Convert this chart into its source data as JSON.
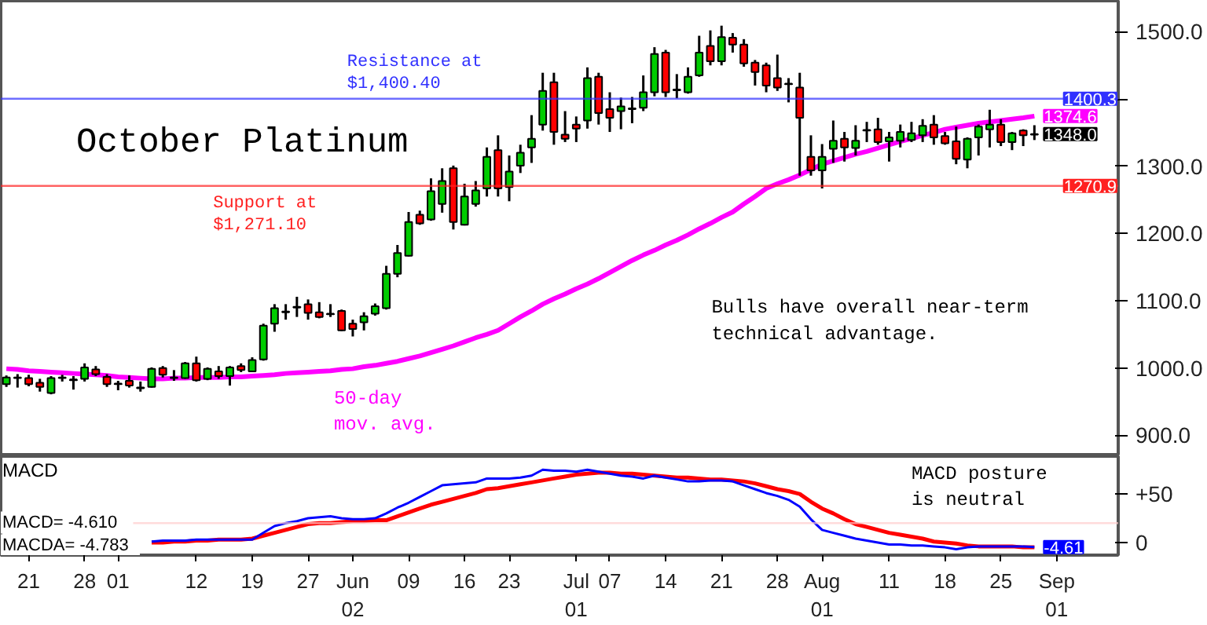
{
  "chart_data": [
    {
      "type": "candlestick",
      "title": "October Platinum",
      "ylim": [
        869,
        1546
      ],
      "tick_labels": "y",
      "categories": [
        null,
        null,
        null,
        null,
        null,
        null,
        null,
        null,
        null,
        null,
        null,
        null,
        null,
        null,
        null,
        null,
        null,
        null,
        null,
        null,
        null,
        null,
        null,
        null,
        null,
        null,
        null,
        null,
        null,
        null,
        null,
        null,
        null,
        null,
        null,
        null,
        null,
        null,
        null,
        null,
        null,
        null,
        null,
        null,
        null,
        null,
        null,
        null,
        null,
        null,
        null,
        null,
        null,
        null,
        null,
        null,
        null,
        null,
        null,
        null,
        null,
        null,
        null,
        null,
        null,
        null,
        null,
        null,
        null,
        null,
        null,
        null,
        null,
        null,
        null,
        null,
        null,
        null,
        null,
        null,
        null,
        null,
        null,
        null,
        null,
        null,
        null,
        null,
        null,
        null,
        null,
        null,
        null,
        null,
        null,
        null,
        null,
        null,
        null,
        null
      ],
      "yticks": [
        {
          "value": 900,
          "label": "900.0"
        },
        {
          "value": 1000,
          "label": "1000.0"
        },
        {
          "value": 1100,
          "label": "1100.0"
        },
        {
          "value": 1200,
          "label": "1200.0"
        },
        {
          "value": 1300,
          "label": "1300.0"
        },
        {
          "value": 1400,
          "label": null
        },
        {
          "value": 1500,
          "label": "1500.0"
        }
      ],
      "series": [
        {
          "type": "candlestick",
          "color": "#000000",
          "ohlc": [
            [
              976,
              989,
              972,
              986
            ],
            [
              985,
              991,
              971,
              986
            ],
            [
              985,
              990,
              973,
              976
            ],
            [
              978,
              984,
              965,
              972
            ],
            [
              963,
              988,
              961,
              985
            ],
            [
              985,
              990,
              980,
              986
            ],
            [
              983,
              988,
              968,
              982
            ],
            [
              984,
              1007,
              980,
              1001
            ],
            [
              998,
              1003,
              988,
              991
            ],
            [
              987,
              991,
              972,
              976
            ],
            [
              977,
              981,
              967,
              976
            ],
            [
              981,
              989,
              971,
              974
            ],
            [
              971,
              980,
              965,
              970
            ],
            [
              972,
              1001,
              971,
              999
            ],
            [
              1000,
              1003,
              986,
              990
            ],
            [
              985,
              997,
              981,
              986
            ],
            [
              985,
              1009,
              984,
              1007
            ],
            [
              1007,
              1017,
              980,
              982
            ],
            [
              984,
              1001,
              982,
              999
            ],
            [
              995,
              1003,
              984,
              988
            ],
            [
              988,
              1003,
              974,
              1001
            ],
            [
              1003,
              1007,
              994,
              997
            ],
            [
              995,
              1016,
              994,
              1012
            ],
            [
              1013,
              1066,
              1011,
              1063
            ],
            [
              1066,
              1095,
              1054,
              1089
            ],
            [
              1083,
              1095,
              1072,
              1084
            ],
            [
              1090,
              1106,
              1076,
              1091
            ],
            [
              1095,
              1102,
              1072,
              1082
            ],
            [
              1083,
              1098,
              1074,
              1076
            ],
            [
              1080,
              1095,
              1076,
              1081
            ],
            [
              1085,
              1087,
              1055,
              1056
            ],
            [
              1066,
              1072,
              1047,
              1058
            ],
            [
              1068,
              1083,
              1056,
              1077
            ],
            [
              1081,
              1096,
              1078,
              1092
            ],
            [
              1089,
              1152,
              1087,
              1140
            ],
            [
              1140,
              1183,
              1135,
              1171
            ],
            [
              1167,
              1232,
              1166,
              1217
            ],
            [
              1228,
              1234,
              1213,
              1215
            ],
            [
              1221,
              1282,
              1219,
              1263
            ],
            [
              1244,
              1297,
              1231,
              1278
            ],
            [
              1297,
              1301,
              1206,
              1217
            ],
            [
              1213,
              1274,
              1212,
              1255
            ],
            [
              1244,
              1278,
              1240,
              1264
            ],
            [
              1267,
              1328,
              1255,
              1314
            ],
            [
              1324,
              1346,
              1255,
              1267
            ],
            [
              1269,
              1316,
              1248,
              1292
            ],
            [
              1301,
              1332,
              1290,
              1320
            ],
            [
              1328,
              1376,
              1305,
              1341
            ],
            [
              1362,
              1439,
              1353,
              1412
            ],
            [
              1425,
              1439,
              1332,
              1351
            ],
            [
              1347,
              1382,
              1336,
              1341
            ],
            [
              1362,
              1374,
              1336,
              1356
            ],
            [
              1368,
              1447,
              1356,
              1431
            ],
            [
              1433,
              1439,
              1362,
              1379
            ],
            [
              1385,
              1410,
              1351,
              1372
            ],
            [
              1382,
              1402,
              1355,
              1389
            ],
            [
              1386,
              1403,
              1364,
              1385
            ],
            [
              1387,
              1435,
              1382,
              1410
            ],
            [
              1410,
              1477,
              1404,
              1467
            ],
            [
              1469,
              1473,
              1403,
              1410
            ],
            [
              1414,
              1437,
              1401,
              1413
            ],
            [
              1410,
              1447,
              1408,
              1433
            ],
            [
              1435,
              1494,
              1433,
              1469
            ],
            [
              1479,
              1502,
              1450,
              1456
            ],
            [
              1456,
              1509,
              1450,
              1492
            ],
            [
              1491,
              1498,
              1469,
              1481
            ],
            [
              1481,
              1489,
              1448,
              1453
            ],
            [
              1454,
              1458,
              1420,
              1440
            ],
            [
              1450,
              1454,
              1410,
              1420
            ],
            [
              1431,
              1466,
              1412,
              1417
            ],
            [
              1423,
              1431,
              1395,
              1422
            ],
            [
              1417,
              1439,
              1286,
              1372
            ],
            [
              1314,
              1346,
              1286,
              1294
            ],
            [
              1294,
              1333,
              1267,
              1314
            ],
            [
              1326,
              1368,
              1305,
              1338
            ],
            [
              1341,
              1351,
              1307,
              1328
            ],
            [
              1327,
              1361,
              1316,
              1338
            ],
            [
              1354,
              1366,
              1336,
              1353
            ],
            [
              1355,
              1372,
              1332,
              1336
            ],
            [
              1337,
              1351,
              1307,
              1343
            ],
            [
              1338,
              1362,
              1328,
              1351
            ],
            [
              1339,
              1366,
              1336,
              1349
            ],
            [
              1346,
              1370,
              1336,
              1360
            ],
            [
              1362,
              1376,
              1332,
              1343
            ],
            [
              1345,
              1351,
              1332,
              1334
            ],
            [
              1337,
              1359,
              1303,
              1311
            ],
            [
              1310,
              1343,
              1297,
              1341
            ],
            [
              1343,
              1362,
              1316,
              1359
            ],
            [
              1355,
              1384,
              1328,
              1362
            ],
            [
              1362,
              1370,
              1330,
              1336
            ],
            [
              1336,
              1351,
              1324,
              1349
            ],
            [
              1353,
              1355,
              1330,
              1346
            ],
            [
              1347,
              1361,
              1339,
              1348.0
            ],
            null,
            null,
            null,
            null,
            null,
            null,
            null
          ],
          "value_labels": [
            null,
            null,
            null,
            null,
            null,
            null,
            null,
            null,
            null,
            null,
            null,
            null,
            null,
            null,
            null,
            null,
            null,
            null,
            null,
            null,
            null,
            null,
            null,
            null,
            null,
            null,
            null,
            null,
            null,
            null,
            null,
            null,
            null,
            null,
            null,
            null,
            null,
            null,
            null,
            null,
            null,
            null,
            null,
            null,
            null,
            null,
            null,
            null,
            null,
            null,
            null,
            null,
            null,
            null,
            null,
            null,
            null,
            null,
            null,
            null,
            null,
            null,
            null,
            null,
            null,
            null,
            null,
            null,
            null,
            null,
            null,
            null,
            null,
            null,
            null,
            null,
            null,
            null,
            null,
            null,
            null,
            null,
            null,
            null,
            null,
            null,
            null,
            null,
            null,
            null,
            null,
            null,
            "1348.0",
            null,
            null,
            null,
            null,
            null,
            null,
            null
          ]
        },
        {
          "type": "line",
          "name": "50-day\nmov. avg.",
          "color": "#ff00ff",
          "values": [
            999,
            998,
            996,
            995,
            994,
            993,
            992,
            991,
            990,
            989,
            987,
            986,
            985,
            984,
            984,
            985,
            985,
            986,
            986,
            986,
            987,
            987,
            988,
            989,
            990,
            992,
            993,
            994,
            995,
            996,
            998,
            999,
            1002,
            1004,
            1007,
            1010,
            1014,
            1018,
            1023,
            1028,
            1033,
            1039,
            1045,
            1050,
            1056,
            1066,
            1076,
            1085,
            1095,
            1103,
            1110,
            1118,
            1125,
            1133,
            1142,
            1151,
            1160,
            1168,
            1175,
            1183,
            1190,
            1198,
            1207,
            1215,
            1224,
            1232,
            1244,
            1255,
            1267,
            1274,
            1280,
            1287,
            1295,
            1303,
            1308,
            1313,
            1318,
            1322,
            1327,
            1332,
            1337,
            1341,
            1346,
            1350,
            1355,
            1358,
            1361,
            1364,
            1366,
            1368,
            1370,
            1372,
            1374.6,
            null,
            null,
            null,
            null,
            null,
            null,
            null
          ],
          "value_labels": [
            null,
            null,
            null,
            null,
            null,
            null,
            null,
            null,
            null,
            null,
            null,
            null,
            null,
            null,
            null,
            null,
            null,
            null,
            null,
            null,
            null,
            null,
            null,
            null,
            null,
            null,
            null,
            null,
            null,
            null,
            null,
            null,
            null,
            null,
            null,
            null,
            null,
            null,
            null,
            null,
            null,
            null,
            null,
            null,
            null,
            null,
            null,
            null,
            null,
            null,
            null,
            null,
            null,
            null,
            null,
            null,
            null,
            null,
            null,
            null,
            null,
            null,
            null,
            null,
            null,
            null,
            null,
            null,
            null,
            null,
            null,
            null,
            null,
            null,
            null,
            null,
            null,
            null,
            null,
            null,
            null,
            null,
            null,
            null,
            null,
            null,
            null,
            null,
            null,
            null,
            null,
            null,
            "1374.6",
            null,
            null,
            null,
            null,
            null,
            null,
            null
          ]
        }
      ],
      "ref_lines": [
        {
          "axis": "y",
          "value": 1400.3,
          "label": "1400.3",
          "color": "#3030ff"
        },
        {
          "axis": "y",
          "value": 1270.9,
          "label": "1270.9",
          "color": "#ff2020"
        }
      ],
      "annotations": [
        "Resistance at\n$1,400.40",
        "Support at\n$1,271.10",
        "Bulls have overall near-term\ntechnical advantage."
      ]
    },
    {
      "type": "line",
      "title": "MACD",
      "ylim": [
        -13,
        89
      ],
      "categories": [
        null,
        null,
        "21",
        null,
        null,
        null,
        null,
        "28",
        null,
        null,
        "01",
        null,
        null,
        null,
        null,
        null,
        null,
        "12",
        null,
        null,
        null,
        null,
        "19",
        null,
        null,
        null,
        null,
        "27",
        null,
        null,
        null,
        "Jun\n02",
        null,
        null,
        null,
        null,
        "09",
        null,
        null,
        null,
        null,
        "16",
        null,
        null,
        null,
        "23",
        null,
        null,
        null,
        null,
        null,
        "Jul\n01",
        null,
        null,
        "07",
        null,
        null,
        null,
        null,
        "14",
        null,
        null,
        null,
        null,
        "21",
        null,
        null,
        null,
        null,
        "28",
        null,
        null,
        null,
        "Aug\n01",
        null,
        null,
        null,
        null,
        null,
        "11",
        null,
        null,
        null,
        null,
        "18",
        null,
        null,
        null,
        null,
        "25",
        null,
        null,
        null,
        null,
        "Sep\n01",
        null,
        null,
        null,
        null,
        null
      ],
      "yticks": [
        0,
        {
          "value": 50,
          "label": "+50"
        }
      ],
      "series": [
        {
          "color": "#0000ff",
          "values": [
            null,
            null,
            null,
            null,
            null,
            null,
            null,
            null,
            null,
            null,
            null,
            null,
            null,
            1,
            2,
            2,
            2,
            3,
            3,
            3,
            3,
            3,
            3,
            10,
            17,
            20,
            22,
            25,
            26,
            27,
            25,
            24,
            24,
            25,
            30,
            36,
            41,
            47,
            53,
            59,
            60,
            61,
            62,
            66,
            66,
            66,
            67,
            69,
            75,
            74,
            74,
            73,
            75,
            73,
            71,
            69,
            68,
            66,
            69,
            67,
            65,
            63,
            63,
            64,
            64,
            63,
            59,
            55,
            51,
            48,
            44,
            37,
            24,
            13,
            10,
            7,
            4,
            2,
            0,
            -2,
            -2,
            -3,
            -3,
            -4,
            -5,
            -7,
            -5,
            -4,
            -4,
            -4,
            -4,
            -4,
            -4.61,
            null,
            null,
            null,
            null,
            null,
            null,
            null
          ],
          "value_labels": [
            null,
            null,
            null,
            null,
            null,
            null,
            null,
            null,
            null,
            null,
            null,
            null,
            null,
            null,
            null,
            null,
            null,
            null,
            null,
            null,
            null,
            null,
            null,
            null,
            null,
            null,
            null,
            null,
            null,
            null,
            null,
            null,
            null,
            null,
            null,
            null,
            null,
            null,
            null,
            null,
            null,
            null,
            null,
            null,
            null,
            null,
            null,
            null,
            null,
            null,
            null,
            null,
            null,
            null,
            null,
            null,
            null,
            null,
            null,
            null,
            null,
            null,
            null,
            null,
            null,
            null,
            null,
            null,
            null,
            null,
            null,
            null,
            null,
            null,
            null,
            null,
            null,
            null,
            null,
            null,
            null,
            null,
            null,
            null,
            null,
            null,
            null,
            null,
            null,
            null,
            null,
            null,
            "-4.61",
            null,
            null,
            null,
            null,
            null,
            null,
            null
          ]
        },
        {
          "color": "#ff0000",
          "values": [
            null,
            null,
            null,
            null,
            null,
            null,
            null,
            null,
            null,
            null,
            null,
            null,
            null,
            0,
            0,
            1,
            1,
            2,
            2,
            3,
            3,
            3,
            4,
            7,
            10,
            13,
            16,
            19,
            20,
            20,
            21,
            22,
            22,
            23,
            23,
            27,
            31,
            35,
            39,
            42,
            45,
            48,
            51,
            55,
            56,
            58,
            60,
            62,
            64,
            66,
            68,
            70,
            71,
            72,
            72,
            71,
            71,
            70,
            69,
            68,
            67,
            67,
            66,
            65,
            65,
            64,
            63,
            61,
            58,
            55,
            53,
            50,
            42,
            35,
            30,
            24,
            19,
            16,
            13,
            10,
            8,
            6,
            4,
            1,
            0,
            -1,
            -3,
            -4,
            -4,
            -4,
            -4,
            -5,
            -5,
            null,
            null,
            null,
            null,
            null,
            null,
            null
          ]
        }
      ],
      "ref_lines": [
        {
          "axis": "y",
          "value": 20,
          "color": "#ffcccc"
        }
      ],
      "annotations": [
        "MACD posture\nis neutral",
        "MACD=    -4.610",
        "MACDA=   -4.783"
      ]
    }
  ]
}
